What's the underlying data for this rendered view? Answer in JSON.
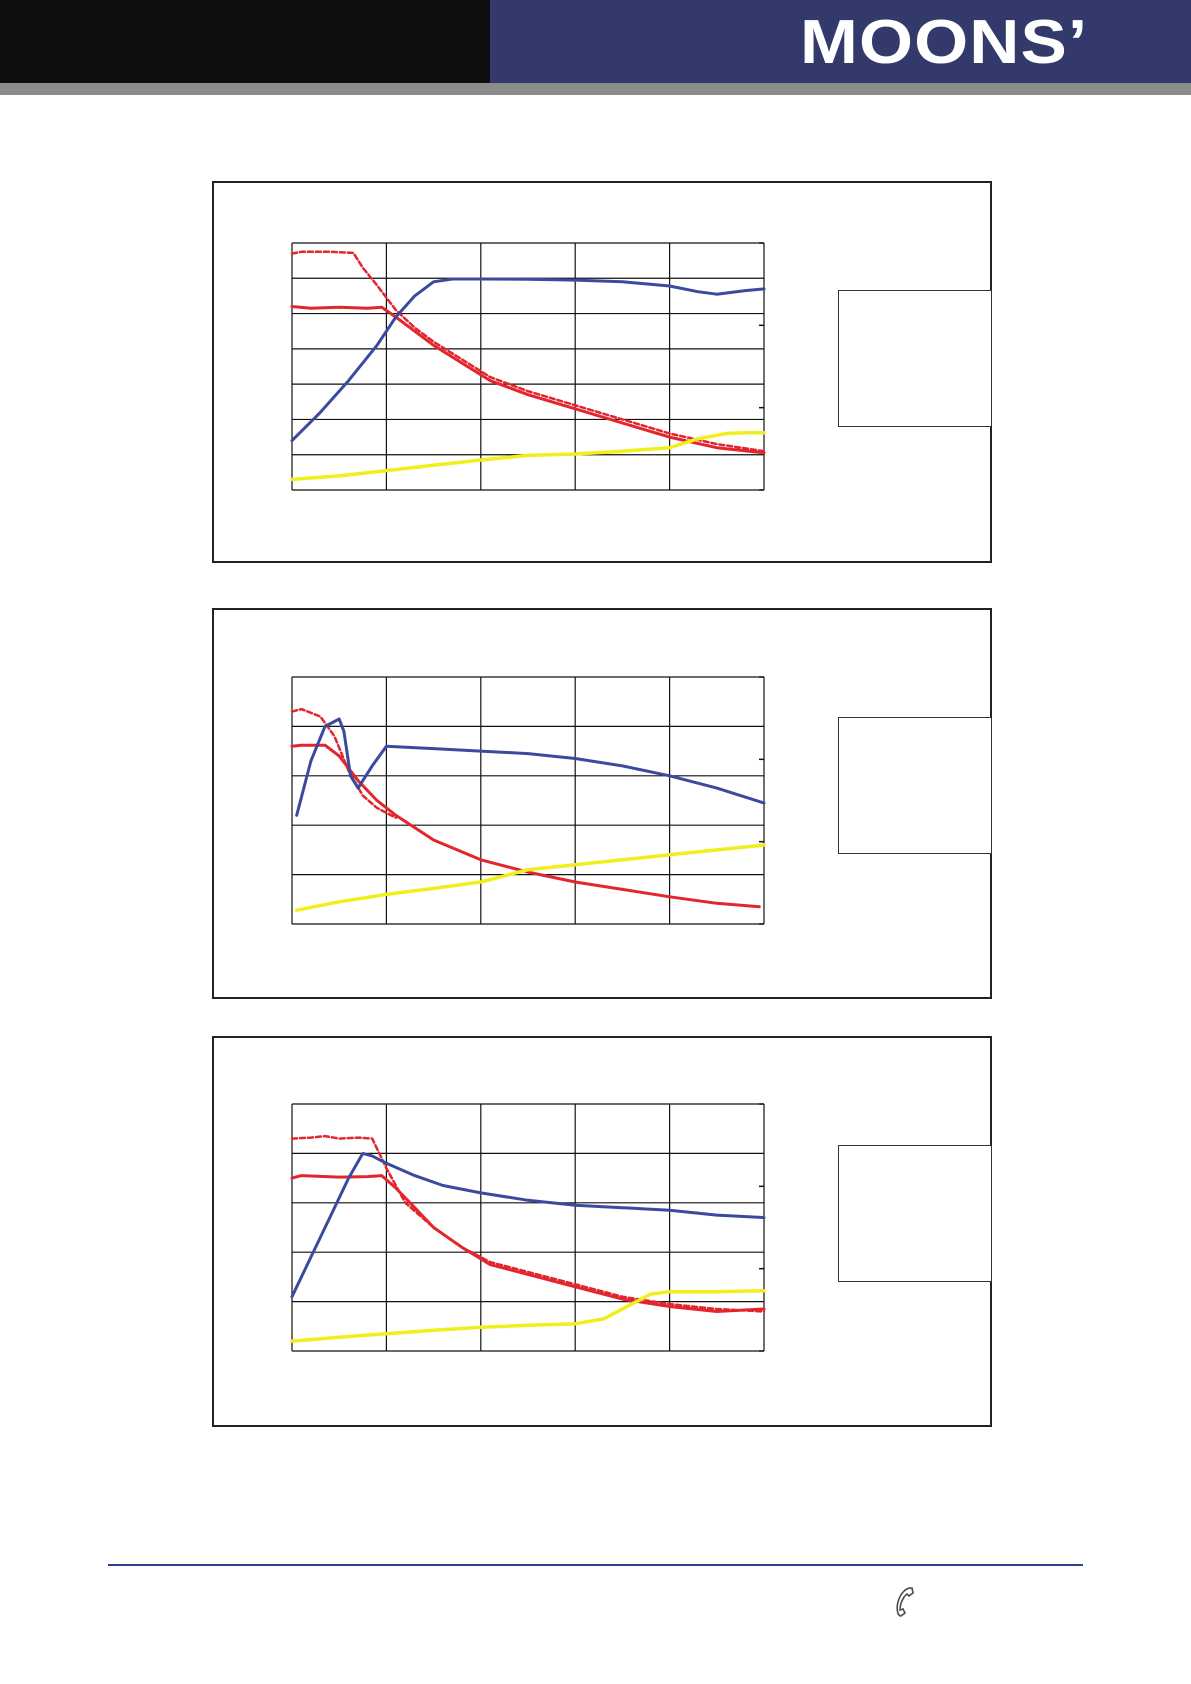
{
  "header": {
    "brand": "MOONS’"
  },
  "colors": {
    "header_dark": "#0e0e0e",
    "header_brand": "#333a6b",
    "red": "#e3262d",
    "blue": "#3b4a9e",
    "yellow": "#f2ee1e",
    "footer_line": "#2b3f8a"
  },
  "footer": {
    "phone_icon": "phone-icon"
  },
  "chart_data": [
    {
      "type": "line",
      "grid": true,
      "x_divisions": 5,
      "y_divisions": 7,
      "xlim": [
        0,
        5
      ],
      "ylim": [
        0,
        7
      ],
      "legend": "right",
      "series": [
        {
          "style": "red-solid",
          "x": [
            0,
            0.2,
            0.5,
            0.8,
            0.95,
            1.1,
            1.3,
            1.5,
            1.8,
            2.1,
            2.5,
            3.0,
            3.5,
            4.0,
            4.5,
            5.0
          ],
          "y": [
            5.2,
            5.15,
            5.18,
            5.15,
            5.18,
            4.9,
            4.5,
            4.1,
            3.6,
            3.1,
            2.7,
            2.3,
            1.9,
            1.5,
            1.2,
            1.05
          ]
        },
        {
          "style": "red-dashed",
          "x": [
            0,
            0.1,
            0.4,
            0.65,
            0.75,
            0.9,
            1.1,
            1.3,
            1.5,
            1.8,
            2.1,
            2.5,
            3.0,
            3.5,
            4.0,
            4.5,
            5.0
          ],
          "y": [
            6.7,
            6.75,
            6.75,
            6.72,
            6.3,
            5.8,
            5.1,
            4.6,
            4.2,
            3.7,
            3.2,
            2.8,
            2.4,
            2.0,
            1.6,
            1.3,
            1.1
          ]
        },
        {
          "style": "blue-solid",
          "x": [
            0,
            0.3,
            0.6,
            0.9,
            1.1,
            1.3,
            1.5,
            1.7,
            2.0,
            2.5,
            3.0,
            3.5,
            4.0,
            4.3,
            4.5,
            4.8,
            5.0
          ],
          "y": [
            1.4,
            2.2,
            3.1,
            4.1,
            4.9,
            5.5,
            5.9,
            5.98,
            5.98,
            5.97,
            5.95,
            5.9,
            5.78,
            5.62,
            5.55,
            5.65,
            5.7
          ]
        },
        {
          "style": "yellow-solid",
          "x": [
            0,
            0.5,
            1.0,
            1.5,
            2.0,
            2.5,
            3.0,
            3.5,
            4.0,
            4.3,
            4.6,
            4.8,
            5.0
          ],
          "y": [
            0.3,
            0.4,
            0.55,
            0.7,
            0.85,
            0.98,
            1.02,
            1.1,
            1.2,
            1.45,
            1.6,
            1.62,
            1.62
          ]
        }
      ]
    },
    {
      "type": "line",
      "grid": true,
      "x_divisions": 5,
      "y_divisions": 5,
      "xlim": [
        0,
        5
      ],
      "ylim": [
        0,
        5
      ],
      "legend": "right",
      "series": [
        {
          "style": "red-solid",
          "x": [
            0,
            0.1,
            0.35,
            0.5,
            0.7,
            0.9,
            1.1,
            1.5,
            2.0,
            2.5,
            3.0,
            3.5,
            4.0,
            4.5,
            4.95
          ],
          "y": [
            3.6,
            3.62,
            3.62,
            3.4,
            2.9,
            2.5,
            2.2,
            1.7,
            1.3,
            1.05,
            0.85,
            0.7,
            0.55,
            0.42,
            0.35
          ]
        },
        {
          "style": "red-dashed",
          "x": [
            0,
            0.1,
            0.3,
            0.45,
            0.6,
            0.75,
            0.9,
            1.1
          ],
          "y": [
            4.3,
            4.35,
            4.2,
            3.8,
            3.1,
            2.6,
            2.35,
            2.15
          ]
        },
        {
          "style": "blue-solid",
          "x": [
            0.05,
            0.2,
            0.35,
            0.5,
            0.55,
            0.62,
            0.7,
            0.85,
            1.0,
            1.5,
            2.0,
            2.5,
            3.0,
            3.5,
            4.0,
            4.5,
            5.0
          ],
          "y": [
            2.2,
            3.3,
            4.0,
            4.15,
            3.9,
            3.0,
            2.75,
            3.2,
            3.6,
            3.55,
            3.5,
            3.45,
            3.35,
            3.2,
            3.0,
            2.75,
            2.45
          ]
        },
        {
          "style": "yellow-solid",
          "x": [
            0.05,
            0.5,
            1.0,
            1.5,
            2.0,
            2.5,
            3.0,
            3.5,
            4.0,
            4.5,
            5.0
          ],
          "y": [
            0.28,
            0.45,
            0.6,
            0.72,
            0.85,
            1.1,
            1.2,
            1.3,
            1.4,
            1.5,
            1.6
          ]
        }
      ]
    },
    {
      "type": "line",
      "grid": true,
      "x_divisions": 5,
      "y_divisions": 5,
      "xlim": [
        0,
        5
      ],
      "ylim": [
        0,
        5
      ],
      "legend": "right",
      "series": [
        {
          "style": "red-solid",
          "x": [
            0,
            0.1,
            0.5,
            0.8,
            0.95,
            1.1,
            1.3,
            1.5,
            1.8,
            2.1,
            2.5,
            3.0,
            3.5,
            4.0,
            4.5,
            5.0
          ],
          "y": [
            3.5,
            3.55,
            3.52,
            3.53,
            3.55,
            3.3,
            2.9,
            2.5,
            2.1,
            1.75,
            1.55,
            1.3,
            1.05,
            0.9,
            0.8,
            0.85
          ]
        },
        {
          "style": "red-dashed",
          "x": [
            0,
            0.2,
            0.35,
            0.5,
            0.7,
            0.85,
            1.0,
            1.2,
            1.5,
            1.8,
            2.1,
            2.5,
            3.0,
            3.5,
            4.0,
            4.5,
            5.0
          ],
          "y": [
            4.3,
            4.32,
            4.35,
            4.3,
            4.32,
            4.3,
            3.7,
            3.0,
            2.5,
            2.1,
            1.8,
            1.6,
            1.35,
            1.1,
            0.95,
            0.85,
            0.8
          ]
        },
        {
          "style": "blue-solid",
          "x": [
            0,
            0.2,
            0.4,
            0.6,
            0.75,
            0.85,
            1.0,
            1.3,
            1.6,
            2.0,
            2.5,
            3.0,
            3.5,
            4.0,
            4.5,
            5.0
          ],
          "y": [
            1.1,
            1.9,
            2.7,
            3.5,
            4.0,
            3.95,
            3.8,
            3.55,
            3.35,
            3.2,
            3.05,
            2.95,
            2.9,
            2.85,
            2.75,
            2.7
          ]
        },
        {
          "style": "yellow-solid",
          "x": [
            0,
            0.5,
            1.0,
            1.5,
            2.0,
            2.5,
            3.0,
            3.3,
            3.6,
            3.8,
            4.0,
            4.5,
            5.0
          ],
          "y": [
            0.2,
            0.28,
            0.35,
            0.42,
            0.48,
            0.52,
            0.55,
            0.65,
            0.95,
            1.15,
            1.2,
            1.2,
            1.22
          ]
        }
      ]
    }
  ]
}
